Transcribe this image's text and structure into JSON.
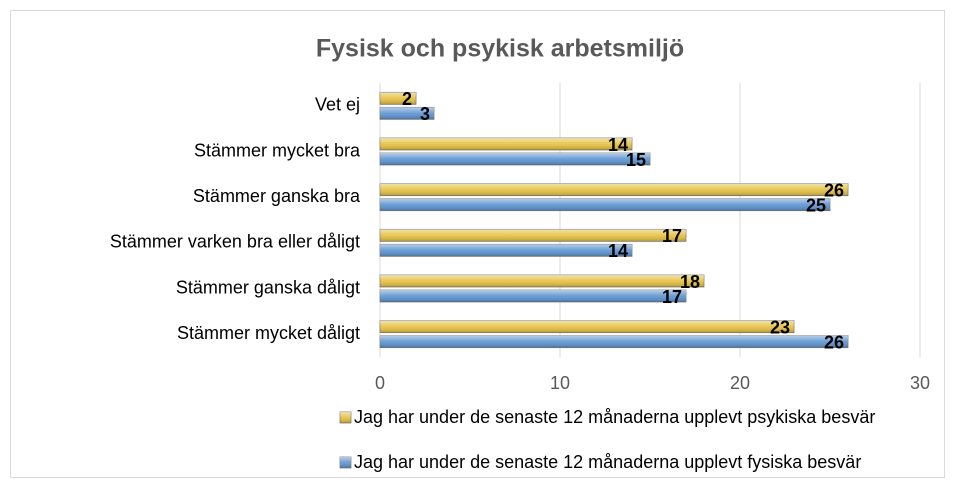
{
  "chart_data": {
    "type": "hbar",
    "title": "Fysisk och psykisk arbetsmiljö",
    "categories": [
      "Vet ej",
      "Stämmer mycket bra",
      "Stämmer ganska bra",
      "Stämmer varken bra eller dåligt",
      "Stämmer ganska dåligt",
      "Stämmer mycket dåligt"
    ],
    "series": [
      {
        "name": "Jag har under de senaste 12 månaderna upplevt psykiska besvär",
        "color": "#e6c040",
        "values": [
          2,
          14,
          26,
          17,
          18,
          23
        ]
      },
      {
        "name": "Jag har under de senaste 12 månaderna upplevt fysiska besvär",
        "color": "#5b93d0",
        "values": [
          3,
          15,
          25,
          14,
          17,
          26
        ]
      }
    ],
    "xlim": [
      0,
      30
    ],
    "xticks": [
      0,
      10,
      20,
      30
    ],
    "grid": true,
    "legend": "bottom"
  }
}
